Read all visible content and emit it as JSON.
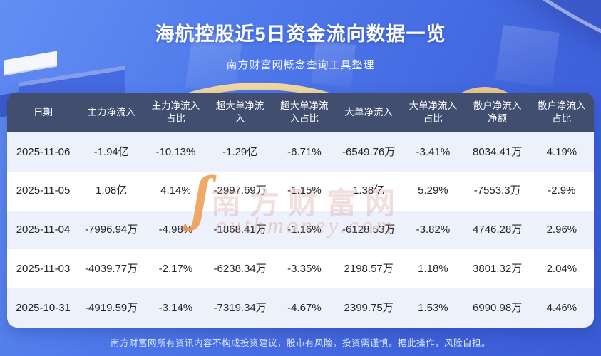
{
  "page": {
    "title": "海航控股近5日资金流向数据一览",
    "subtitle": "南方财富网概念查询工具整理",
    "footer_disclaimer": "南方财富网所有资讯内容不构成投资建议，股市有风险，投资需谨慎。据此操作，风险自担。"
  },
  "watermark": {
    "logo_letter": "ʃ",
    "brand": "南方财富网",
    "domain": "outhmoney.com"
  },
  "colors": {
    "background_top": "#6190f4",
    "background_bottom": "#3a5cd6",
    "header_row": "#424e70",
    "row_tint": "#edf1fb",
    "row_white": "#ffffff",
    "gold_arc": "#f2d9a2",
    "watermark_orange": "#ee994a"
  },
  "chart_data": {
    "type": "table",
    "title": "海航控股近5日资金流向数据一览",
    "columns": [
      "日期",
      "主力净流入",
      "主力净流入占比",
      "超大单净流入",
      "超大单净流入占比",
      "大单净流入",
      "大单净流入占比",
      "散户净流入净额",
      "散户净流入占比"
    ],
    "rows": [
      [
        "2025-11-06",
        "-1.94亿",
        "-10.13%",
        "-1.29亿",
        "-6.71%",
        "-6549.76万",
        "-3.41%",
        "8034.41万",
        "4.19%"
      ],
      [
        "2025-11-05",
        "1.08亿",
        "4.14%",
        "-2997.69万",
        "-1.15%",
        "1.38亿",
        "5.29%",
        "-7553.3万",
        "-2.9%"
      ],
      [
        "2025-11-04",
        "-7996.94万",
        "-4.98%",
        "-1868.41万",
        "-1.16%",
        "-6128.53万",
        "-3.82%",
        "4746.28万",
        "2.96%"
      ],
      [
        "2025-11-03",
        "-4039.77万",
        "-2.17%",
        "-6238.34万",
        "-3.35%",
        "2198.57万",
        "1.18%",
        "3801.32万",
        "2.04%"
      ],
      [
        "2025-10-31",
        "-4919.59万",
        "-3.14%",
        "-7319.34万",
        "-4.67%",
        "2399.75万",
        "1.53%",
        "6990.98万",
        "4.46%"
      ]
    ]
  }
}
